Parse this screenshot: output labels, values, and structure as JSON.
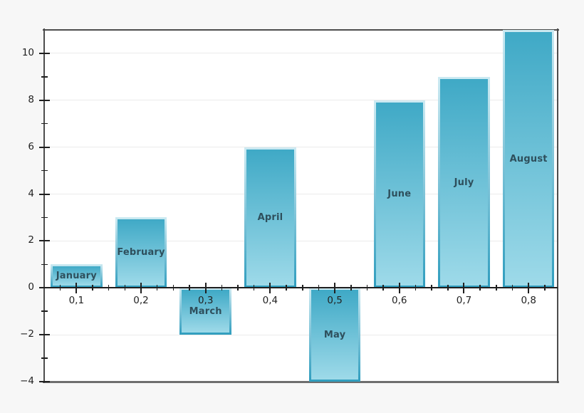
{
  "chart_data": {
    "type": "bar",
    "title": "",
    "categories": [
      "January",
      "February",
      "March",
      "April",
      "May",
      "June",
      "July",
      "August"
    ],
    "x": [
      0.1,
      0.2,
      0.3,
      0.4,
      0.5,
      0.6,
      0.7,
      0.8
    ],
    "x_tick_labels": [
      "0,1",
      "0,2",
      "0,3",
      "0,4",
      "0,5",
      "0,6",
      "0,7",
      "0,8"
    ],
    "values": [
      1,
      3,
      -2,
      6,
      -4,
      8,
      9,
      11
    ],
    "bar_width": 0.08,
    "xlim": [
      0.05,
      0.845
    ],
    "ylim": [
      -4,
      11
    ],
    "y_major_ticks": [
      -4,
      -2,
      0,
      2,
      4,
      6,
      8,
      10
    ],
    "y_major_tick_labels": [
      "−4",
      "−2",
      "0",
      "2",
      "4",
      "6",
      "8",
      "10"
    ],
    "y_minor_ticks": [
      -3,
      -1,
      1,
      3,
      5,
      7,
      9
    ],
    "x_minor_tick_step": 0.025,
    "grid": "horizontal-major-only",
    "legend": "none",
    "bar_label_position": "center-of-bar",
    "colors": {
      "page_bg": "#f7f7f7",
      "plot_bg": "#ffffff",
      "grid": "#ebebeb",
      "frame": "#4d4d4d",
      "frame_bottom": "#6e6e6e",
      "axis": "#1f1f1f",
      "tick_label": "#222222",
      "bar_fill_top": "#3fa9c6",
      "bar_fill_bottom": "#9edae9",
      "bar_edge_top": "#cdeaf2",
      "bar_edge_bottom": "#2f9dbe",
      "bar_label": "#2e4f5c"
    }
  }
}
